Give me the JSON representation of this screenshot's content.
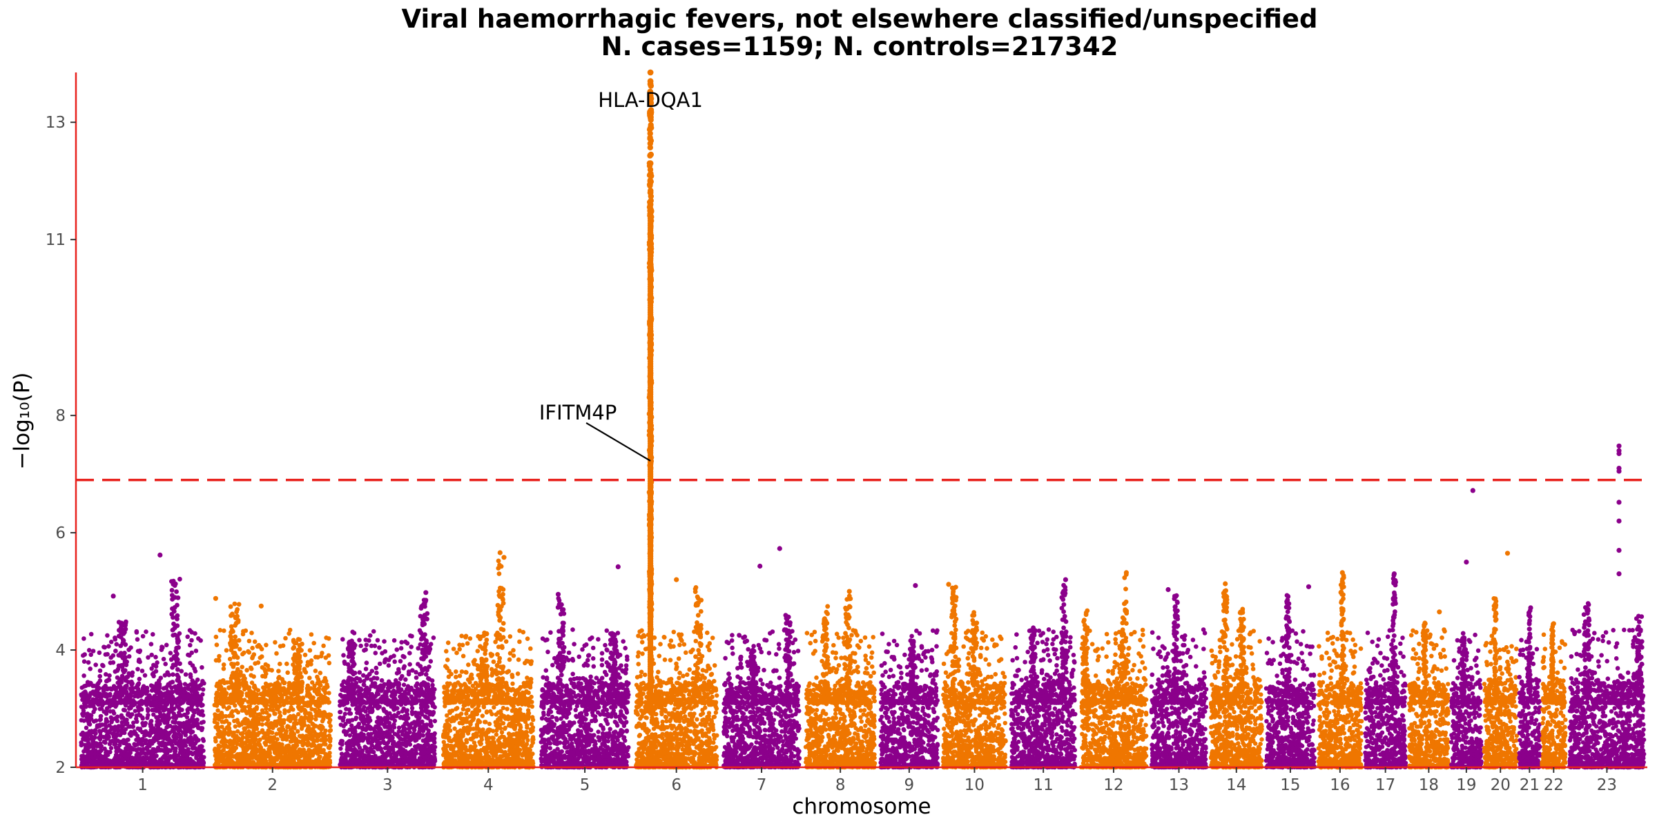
{
  "chart_data": {
    "type": "scatter",
    "title": "Viral haemorrhagic fevers, not elsewhere classified/unspecified",
    "subtitle": "N. cases=1159; N. controls=217342",
    "xlabel": "chromosome",
    "ylabel": "−log₁₀(P)",
    "ylim": [
      2,
      13.85
    ],
    "yticks": [
      2,
      4,
      6,
      8,
      11,
      13
    ],
    "grid": false,
    "legend": "none",
    "threshold": {
      "y": 6.9,
      "color": "#e8211c",
      "style": "dashed"
    },
    "colors": {
      "odd": "#8b008b",
      "even": "#ef7600",
      "axis": "#e8211c"
    },
    "chromosomes": [
      {
        "label": "1",
        "x": [
          0.0,
          0.94
        ],
        "peaks": [
          [
            0.35,
            4.5
          ],
          [
            0.75,
            5.25
          ]
        ],
        "points": [
          [
            0.63,
            5.62
          ],
          [
            0.28,
            4.92
          ]
        ]
      },
      {
        "label": "2",
        "x": [
          0.94,
          1.83
        ],
        "peaks": [
          [
            0.2,
            4.8
          ],
          [
            0.7,
            4.2
          ]
        ],
        "points": [
          [
            0.05,
            4.88
          ],
          [
            0.41,
            4.75
          ]
        ]
      },
      {
        "label": "3",
        "x": [
          1.83,
          2.56
        ],
        "peaks": [
          [
            0.15,
            4.15
          ],
          [
            0.85,
            4.9
          ]
        ],
        "points": [
          [
            0.87,
            4.98
          ]
        ]
      },
      {
        "label": "4",
        "x": [
          2.56,
          3.25
        ],
        "peaks": [
          [
            0.45,
            4.3
          ],
          [
            0.62,
            5.55
          ]
        ],
        "points": [
          [
            0.62,
            5.66
          ],
          [
            0.66,
            5.58
          ]
        ]
      },
      {
        "label": "5",
        "x": [
          3.25,
          3.92
        ],
        "peaks": [
          [
            0.25,
            4.95
          ],
          [
            0.8,
            4.3
          ]
        ],
        "points": [
          [
            0.85,
            5.42
          ],
          [
            0.22,
            4.95
          ]
        ]
      },
      {
        "label": "6",
        "x": [
          3.92,
          4.54
        ],
        "peaks": [
          [
            0.75,
            5.1
          ]
        ],
        "points": [
          [
            0.5,
            5.2
          ]
        ],
        "tower": {
          "at": 0.205,
          "top": 13.65
        }
      },
      {
        "label": "7",
        "x": [
          4.54,
          5.12
        ],
        "peaks": [
          [
            0.4,
            4.0
          ],
          [
            0.82,
            4.6
          ]
        ],
        "points": [
          [
            0.72,
            5.73
          ],
          [
            0.48,
            5.43
          ]
        ]
      },
      {
        "label": "8",
        "x": [
          5.12,
          5.65
        ],
        "peaks": [
          [
            0.3,
            4.75
          ],
          [
            0.6,
            4.95
          ]
        ],
        "points": [
          [
            0.62,
            5.0
          ]
        ]
      },
      {
        "label": "9",
        "x": [
          5.65,
          6.09
        ],
        "peaks": [
          [
            0.55,
            4.2
          ]
        ],
        "points": [
          [
            0.6,
            5.1
          ]
        ]
      },
      {
        "label": "10",
        "x": [
          6.09,
          6.57
        ],
        "peaks": [
          [
            0.2,
            5.1
          ],
          [
            0.5,
            4.65
          ]
        ],
        "points": [
          [
            0.12,
            5.12
          ]
        ]
      },
      {
        "label": "11",
        "x": [
          6.57,
          7.06
        ],
        "peaks": [
          [
            0.35,
            4.4
          ],
          [
            0.8,
            5.18
          ]
        ],
        "points": [
          [
            0.82,
            5.2
          ]
        ]
      },
      {
        "label": "12",
        "x": [
          7.06,
          7.56
        ],
        "peaks": [
          [
            0.1,
            4.75
          ],
          [
            0.65,
            5.3
          ]
        ],
        "points": [
          [
            0.68,
            5.32
          ]
        ]
      },
      {
        "label": "13",
        "x": [
          7.56,
          7.98
        ],
        "peaks": [
          [
            0.45,
            5.0
          ]
        ],
        "points": [
          [
            0.32,
            5.03
          ]
        ]
      },
      {
        "label": "14",
        "x": [
          7.98,
          8.37
        ],
        "peaks": [
          [
            0.3,
            5.1
          ],
          [
            0.6,
            4.8
          ]
        ],
        "points": [
          [
            0.3,
            5.13
          ]
        ]
      },
      {
        "label": "15",
        "x": [
          8.37,
          8.74
        ],
        "peaks": [
          [
            0.45,
            4.95
          ]
        ],
        "points": [
          [
            0.85,
            5.08
          ]
        ]
      },
      {
        "label": "16",
        "x": [
          8.74,
          9.07
        ],
        "peaks": [
          [
            0.55,
            5.3
          ]
        ],
        "points": [
          [
            0.55,
            5.32
          ]
        ]
      },
      {
        "label": "17",
        "x": [
          9.07,
          9.38
        ],
        "peaks": [
          [
            0.7,
            5.3
          ]
        ],
        "points": [
          [
            0.7,
            5.3
          ]
        ]
      },
      {
        "label": "18",
        "x": [
          9.38,
          9.68
        ],
        "peaks": [
          [
            0.4,
            4.5
          ]
        ],
        "points": [
          [
            0.75,
            4.65
          ]
        ]
      },
      {
        "label": "19",
        "x": [
          9.68,
          9.91
        ],
        "peaks": [
          [
            0.4,
            4.3
          ]
        ],
        "points": [
          [
            0.5,
            5.5
          ],
          [
            0.7,
            6.72
          ]
        ]
      },
      {
        "label": "20",
        "x": [
          9.91,
          10.16
        ],
        "peaks": [
          [
            0.35,
            4.9
          ]
        ],
        "points": [
          [
            0.7,
            5.65
          ]
        ]
      },
      {
        "label": "21",
        "x": [
          10.16,
          10.32
        ],
        "peaks": [
          [
            0.5,
            4.7
          ]
        ],
        "points": [
          [
            0.55,
            4.72
          ]
        ]
      },
      {
        "label": "22",
        "x": [
          10.32,
          10.5
        ],
        "peaks": [
          [
            0.45,
            4.45
          ]
        ],
        "points": [
          [
            0.5,
            4.45
          ]
        ]
      },
      {
        "label": "23",
        "x": [
          10.5,
          11.07
        ],
        "peaks": [
          [
            0.25,
            4.8
          ],
          [
            0.9,
            4.6
          ]
        ],
        "points": [
          [
            0.65,
            7.48
          ],
          [
            0.65,
            7.4
          ],
          [
            0.65,
            7.35
          ],
          [
            0.65,
            7.1
          ],
          [
            0.65,
            7.05
          ],
          [
            0.65,
            6.52
          ],
          [
            0.65,
            6.2
          ],
          [
            0.65,
            5.7
          ],
          [
            0.65,
            5.3
          ]
        ]
      }
    ],
    "annotations": [
      {
        "text": "HLA-DQA1",
        "chrom": "6",
        "at": 0.205,
        "y": 13.65,
        "leader": false
      },
      {
        "text": "IFITM4P",
        "chrom": "6",
        "at": 0.205,
        "y": 7.25,
        "leader": true
      }
    ]
  }
}
